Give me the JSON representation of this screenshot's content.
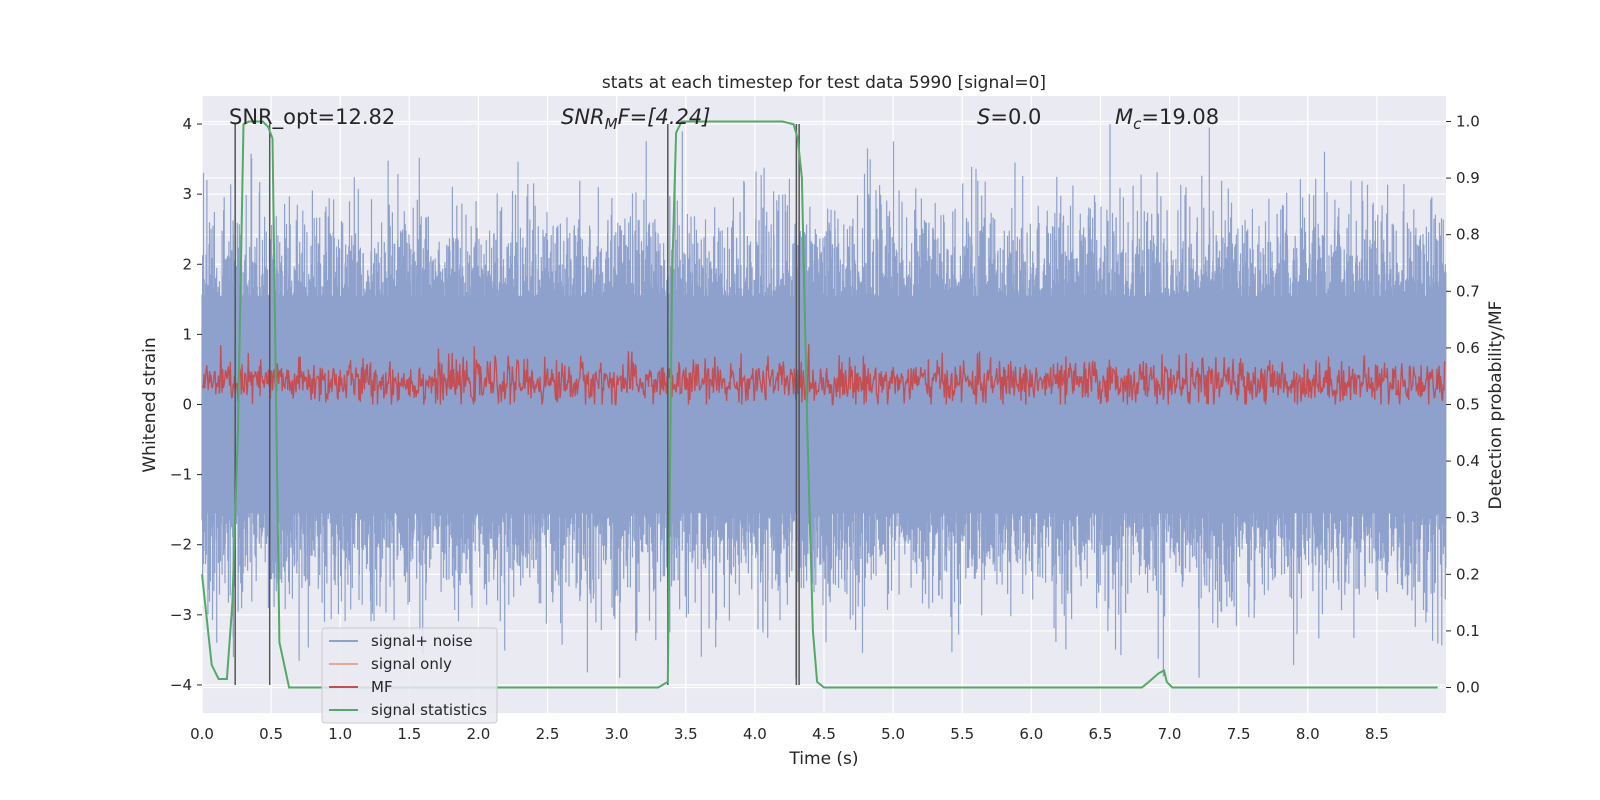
{
  "chart_data": {
    "type": "line",
    "title": "stats at each timestep for test data 5990 [signal=0]",
    "xlabel": "Time (s)",
    "ylabel": "Whitened strain",
    "ylabel_right": "Detection probability/MF",
    "xlim": [
      0,
      9.0
    ],
    "ylim": [
      -4.4,
      4.4
    ],
    "ylim_right": [
      -0.045,
      1.045
    ],
    "x_ticks": [
      "0.0",
      "0.5",
      "1.0",
      "1.5",
      "2.0",
      "2.5",
      "3.0",
      "3.5",
      "4.0",
      "4.5",
      "5.0",
      "5.5",
      "6.0",
      "6.5",
      "7.0",
      "7.5",
      "8.0",
      "8.5"
    ],
    "y_ticks": [
      "4",
      "3",
      "2",
      "1",
      "0",
      "−1",
      "−2",
      "−3",
      "−4"
    ],
    "y_ticks_right": [
      "1.0",
      "0.9",
      "0.8",
      "0.7",
      "0.6",
      "0.5",
      "0.4",
      "0.3",
      "0.2",
      "0.1",
      "0.0"
    ],
    "grid": true,
    "legend_position": "lower-left",
    "annotations": {
      "snr_opt": "SNR_opt=12.82",
      "snr_mf_main": "SNR",
      "snr_mf_sub": "M",
      "snr_mf_rest": "F=[4.24]",
      "s_main": "S",
      "s_rest": "=0.0",
      "mc_main": "M",
      "mc_sub": "c",
      "mc_rest": "=19.08"
    },
    "series": [
      {
        "name": "signal+ noise",
        "color": "#8ea0cc",
        "noise_amplitude": [
          -3.9,
          4.0
        ]
      },
      {
        "name": "signal only",
        "color": "#e8a98d",
        "values": []
      },
      {
        "name": "MF",
        "color": "#c44e52",
        "noise_amplitude": [
          0.0,
          0.86
        ]
      },
      {
        "name": "signal statistics",
        "color": "#55a868",
        "axis": "right",
        "x": [
          0.0,
          0.07,
          0.12,
          0.18,
          0.22,
          0.26,
          0.3,
          0.34,
          0.4,
          0.44,
          0.48,
          0.51,
          0.56,
          0.63,
          1.0,
          2.0,
          3.0,
          3.3,
          3.37,
          3.4,
          3.43,
          3.47,
          3.6,
          4.0,
          4.2,
          4.28,
          4.31,
          4.34,
          4.38,
          4.42,
          4.45,
          4.5,
          5.0,
          6.0,
          6.8,
          6.85,
          6.92,
          6.96,
          6.98,
          7.02,
          7.5,
          8.0,
          8.94
        ],
        "values": [
          0.2,
          0.04,
          0.015,
          0.015,
          0.15,
          0.45,
          0.995,
          1.0,
          1.0,
          1.0,
          0.99,
          0.97,
          0.08,
          0.0,
          0.0,
          0.0,
          0.0,
          0.0,
          0.01,
          0.72,
          0.98,
          1.0,
          1.0,
          1.0,
          1.0,
          0.995,
          0.97,
          0.9,
          0.45,
          0.1,
          0.01,
          0.0,
          0.0,
          0.0,
          0.0,
          0.01,
          0.025,
          0.03,
          0.01,
          0.0,
          0.0,
          0.0,
          0.0
        ]
      }
    ],
    "vlines_x": [
      0.24,
      0.49,
      3.37,
      4.3,
      4.32
    ]
  }
}
